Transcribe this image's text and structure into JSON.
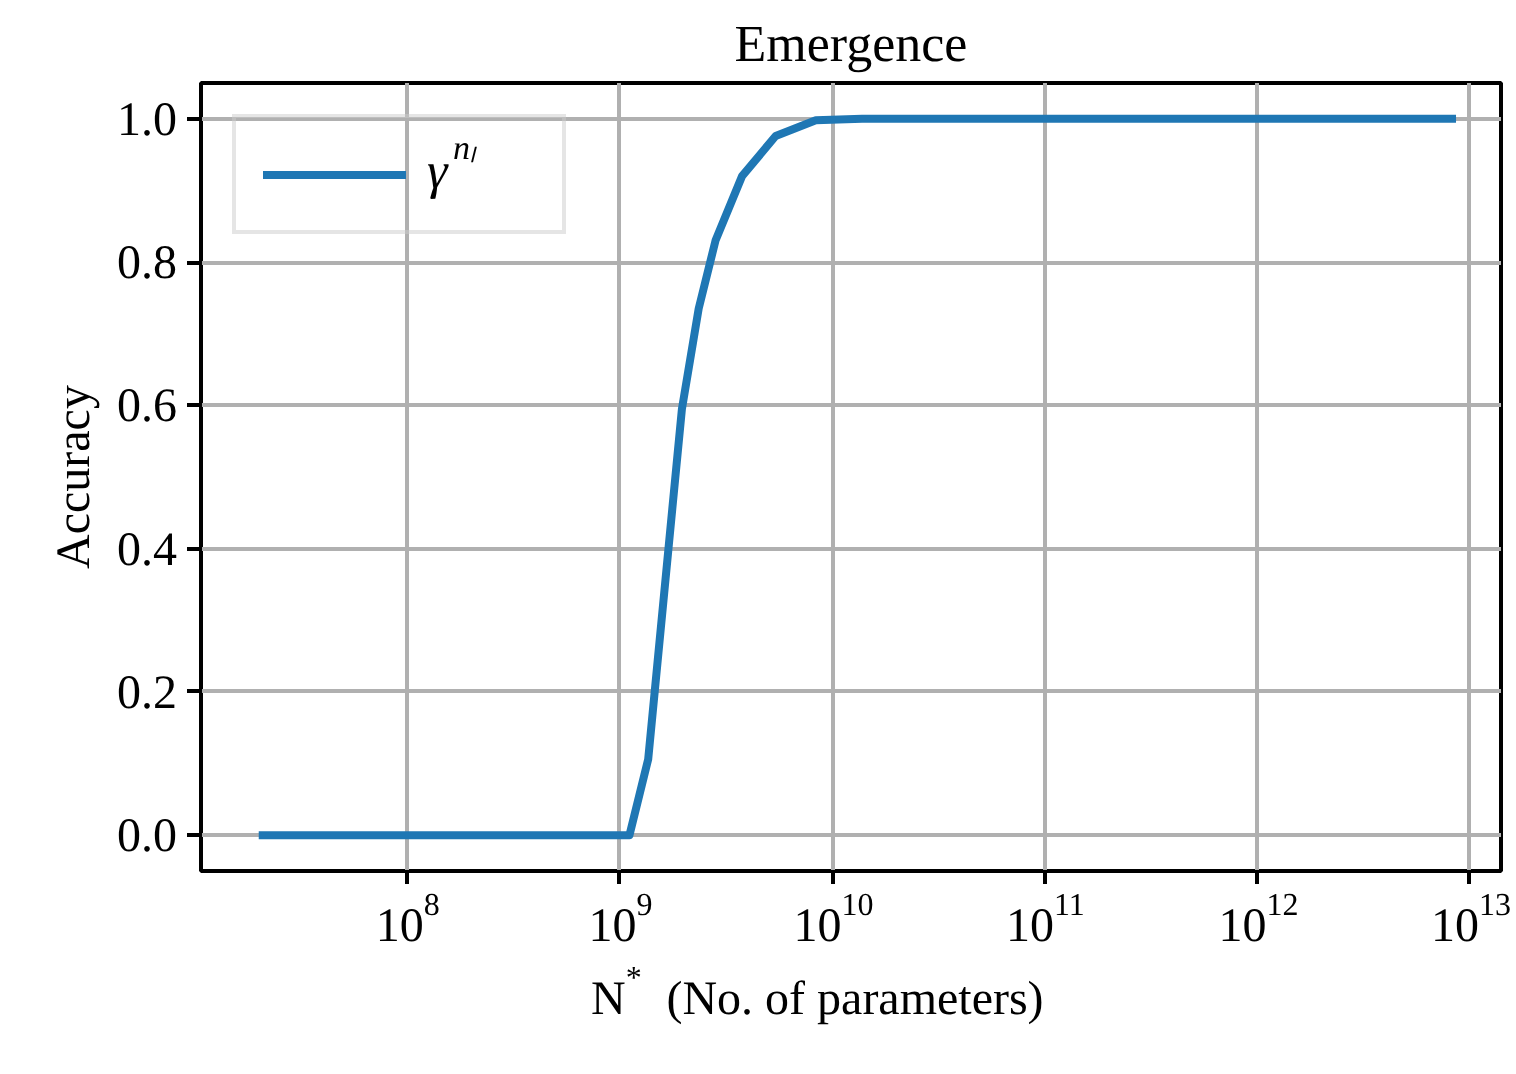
{
  "chart_data": {
    "type": "line",
    "title": "Emergence",
    "xlabel": "N$^{*}$  (No. of parameters)",
    "ylabel": "Accuracy",
    "log": "x",
    "grid": true,
    "legend": "top left",
    "xlim": [
      10700000.0,
      14000000000000.0
    ],
    "ylim": [
      -0.05,
      1.05
    ],
    "xticks": [
      {
        "value": 100000000.0,
        "label": "10$^{8}$"
      },
      {
        "value": 1000000000.0,
        "label": "10$^{9}$"
      },
      {
        "value": 10000000000.0,
        "label": "10$^{10}$"
      },
      {
        "value": 100000000000.0,
        "label": "10$^{11}$"
      },
      {
        "value": 1000000000000.0,
        "label": "10$^{12}$"
      },
      {
        "value": 10000000000000.0,
        "label": "10$^{13}$"
      }
    ],
    "yticks": [
      {
        "value": 0,
        "label": "0.0"
      },
      {
        "value": 0.2,
        "label": "0.2"
      },
      {
        "value": 0.4,
        "label": "0.4"
      },
      {
        "value": 0.6,
        "label": "0.6"
      },
      {
        "value": 0.8,
        "label": "0.8"
      },
      {
        "value": 1,
        "label": "1.0"
      }
    ],
    "series": [
      {
        "name": "γ$^{nₗ}$",
        "color": "#1f77b4",
        "x": [
          20000000.0,
          1110000000.0,
          1360000000.0,
          1690000000.0,
          1960000000.0,
          2350000000.0,
          2820000000.0,
          3760000000.0,
          5410000000.0,
          8360000000.0,
          13800000000.0,
          8600000000000.0
        ],
        "values": [
          0,
          0,
          0.106,
          0.397,
          0.595,
          0.735,
          0.83,
          0.92,
          0.976,
          0.998,
          1.0,
          1.0
        ]
      }
    ]
  }
}
